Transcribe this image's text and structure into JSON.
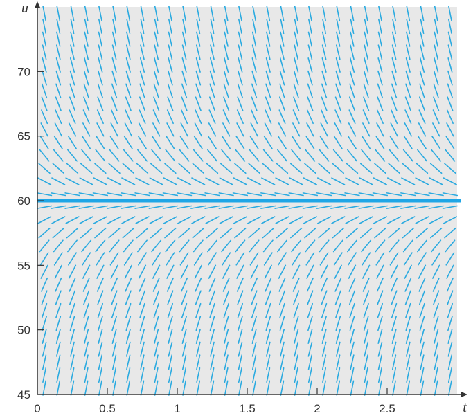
{
  "chart_data": {
    "type": "direction_field",
    "xlabel": "t",
    "ylabel": "u",
    "xlim": [
      0,
      3.0
    ],
    "ylim": [
      45,
      75
    ],
    "x_ticks": [
      0,
      0.5,
      1,
      1.5,
      2,
      2.5
    ],
    "x_tick_labels": [
      "0",
      "0.5",
      "1",
      "1.5",
      "2",
      "2.5"
    ],
    "y_ticks": [
      45,
      50,
      55,
      60,
      65,
      70
    ],
    "y_tick_labels": [
      "45",
      "50",
      "55",
      "60",
      "65",
      "70"
    ],
    "grid": false,
    "equilibrium": {
      "u": 60
    },
    "field": {
      "t_samples": [
        0.0,
        0.1,
        0.2,
        0.3,
        0.4,
        0.5,
        0.6,
        0.7,
        0.8,
        0.9,
        1.0,
        1.1,
        1.2,
        1.3,
        1.4,
        1.5,
        1.6,
        1.7,
        1.8,
        1.9,
        2.0,
        2.1,
        2.2,
        2.3,
        2.4,
        2.5,
        2.6,
        2.7,
        2.8,
        2.9
      ],
      "u_samples": [
        45.5,
        46.5,
        47.5,
        48.5,
        49.5,
        50.5,
        51.5,
        52.5,
        53.5,
        54.5,
        55.5,
        56.5,
        57.5,
        58.5,
        59.5,
        60.5,
        61.5,
        62.5,
        63.5,
        64.5,
        65.5,
        66.5,
        67.5,
        68.5,
        69.5,
        70.5,
        71.5,
        72.5,
        73.5,
        74.5
      ]
    },
    "colors": {
      "field": "#2aaae0",
      "equilibrium": "#1fa6e6",
      "axis": "#333333",
      "plot_bg": "#e8e8e8"
    }
  }
}
